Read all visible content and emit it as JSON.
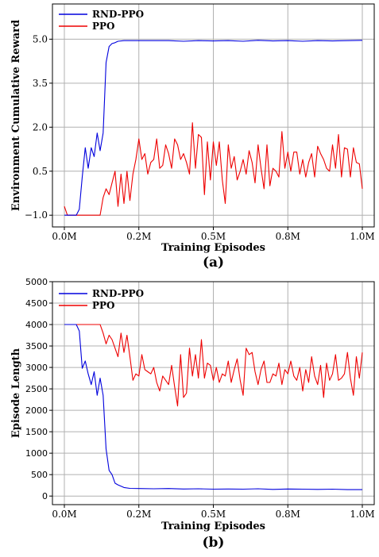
{
  "chart_data": [
    {
      "type": "line",
      "caption": "(a)",
      "xlabel": "Training Episodes",
      "ylabel": "Environment Cumulative Reward",
      "xticks": [
        "0.0M",
        "0.2M",
        "0.5M",
        "0.8M",
        "1.0M"
      ],
      "yticks": [
        "−1.0",
        "0.5",
        "2.0",
        "3.5",
        "5.0"
      ],
      "xlim": [
        -0.04,
        1.04
      ],
      "ylim": [
        -1.4,
        6.2
      ],
      "grid": true,
      "legend_position": "top-left",
      "series": [
        {
          "name": "RND-PPO",
          "color": "#0000dd",
          "x": [
            0.0,
            0.02,
            0.04,
            0.05,
            0.06,
            0.07,
            0.08,
            0.09,
            0.1,
            0.11,
            0.12,
            0.13,
            0.14,
            0.15,
            0.16,
            0.17,
            0.18,
            0.2,
            0.25,
            0.3,
            0.35,
            0.4,
            0.45,
            0.5,
            0.55,
            0.6,
            0.65,
            0.7,
            0.75,
            0.8,
            0.85,
            0.9,
            0.95,
            1.0
          ],
          "y": [
            -1.0,
            -1.0,
            -1.0,
            -0.8,
            0.3,
            1.3,
            0.6,
            1.3,
            1.0,
            1.8,
            1.2,
            1.8,
            4.2,
            4.75,
            4.85,
            4.88,
            4.93,
            4.95,
            4.95,
            4.95,
            4.95,
            4.93,
            4.95,
            4.94,
            4.95,
            4.93,
            4.96,
            4.94,
            4.95,
            4.93,
            4.95,
            4.94,
            4.95,
            4.96
          ]
        },
        {
          "name": "PPO",
          "color": "#ee0000",
          "x": [
            0.0,
            0.01,
            0.02,
            0.05,
            0.08,
            0.11,
            0.12,
            0.13,
            0.14,
            0.15,
            0.16,
            0.17,
            0.18,
            0.19,
            0.2,
            0.21,
            0.22,
            0.23,
            0.24,
            0.25,
            0.26,
            0.27,
            0.28,
            0.29,
            0.3,
            0.31,
            0.32,
            0.33,
            0.34,
            0.35,
            0.36,
            0.37,
            0.38,
            0.39,
            0.4,
            0.41,
            0.42,
            0.43,
            0.44,
            0.45,
            0.46,
            0.47,
            0.48,
            0.49,
            0.5,
            0.51,
            0.52,
            0.53,
            0.54,
            0.55,
            0.56,
            0.57,
            0.58,
            0.59,
            0.6,
            0.61,
            0.62,
            0.63,
            0.64,
            0.65,
            0.66,
            0.67,
            0.68,
            0.69,
            0.7,
            0.71,
            0.72,
            0.73,
            0.74,
            0.75,
            0.76,
            0.77,
            0.78,
            0.79,
            0.8,
            0.81,
            0.82,
            0.83,
            0.84,
            0.85,
            0.86,
            0.87,
            0.88,
            0.89,
            0.9,
            0.91,
            0.92,
            0.93,
            0.94,
            0.95,
            0.96,
            0.97,
            0.98,
            0.99,
            1.0
          ],
          "y": [
            -0.7,
            -1.0,
            -1.0,
            -1.0,
            -1.0,
            -1.0,
            -1.0,
            -0.4,
            -0.1,
            -0.3,
            0.1,
            0.5,
            -0.7,
            0.4,
            -0.6,
            0.5,
            -0.5,
            0.4,
            0.9,
            1.6,
            0.9,
            1.1,
            0.4,
            0.8,
            0.9,
            1.6,
            0.6,
            0.7,
            1.4,
            1.1,
            0.6,
            1.6,
            1.4,
            0.9,
            1.1,
            0.8,
            0.4,
            2.15,
            0.6,
            1.75,
            1.65,
            -0.3,
            1.5,
            0.2,
            1.5,
            0.7,
            1.5,
            0.2,
            -0.6,
            1.4,
            0.6,
            1.0,
            0.2,
            0.5,
            0.9,
            0.4,
            1.2,
            0.8,
            0.1,
            1.4,
            0.6,
            -0.1,
            1.4,
            0.0,
            0.6,
            0.5,
            0.3,
            1.85,
            0.6,
            1.15,
            0.5,
            1.15,
            1.15,
            0.4,
            0.9,
            0.3,
            0.8,
            1.1,
            0.3,
            1.35,
            1.1,
            0.9,
            0.6,
            0.5,
            1.4,
            0.6,
            1.75,
            0.3,
            1.3,
            1.25,
            0.3,
            1.3,
            0.8,
            0.75,
            -0.1
          ]
        }
      ]
    },
    {
      "type": "line",
      "caption": "(b)",
      "xlabel": "Training Episodes",
      "ylabel": "Episode Length",
      "xticks": [
        "0.0M",
        "0.2M",
        "0.5M",
        "0.8M",
        "1.0M"
      ],
      "yticks": [
        "0",
        "500",
        "1000",
        "1500",
        "2000",
        "2500",
        "3000",
        "3500",
        "4000",
        "4500",
        "5000"
      ],
      "xlim": [
        -0.04,
        1.04
      ],
      "ylim": [
        -200,
        5000
      ],
      "grid": true,
      "legend_position": "top-left",
      "series": [
        {
          "name": "RND-PPO",
          "color": "#0000dd",
          "x": [
            0.0,
            0.02,
            0.04,
            0.05,
            0.06,
            0.07,
            0.08,
            0.09,
            0.1,
            0.11,
            0.12,
            0.13,
            0.14,
            0.15,
            0.16,
            0.17,
            0.18,
            0.19,
            0.2,
            0.22,
            0.25,
            0.3,
            0.35,
            0.4,
            0.45,
            0.5,
            0.55,
            0.6,
            0.65,
            0.7,
            0.75,
            0.8,
            0.85,
            0.9,
            0.95,
            1.0
          ],
          "y": [
            4000,
            4000,
            4000,
            3850,
            2980,
            3150,
            2850,
            2600,
            2900,
            2350,
            2750,
            2350,
            1100,
            600,
            500,
            300,
            260,
            230,
            200,
            180,
            175,
            170,
            175,
            165,
            170,
            160,
            165,
            160,
            170,
            155,
            165,
            160,
            155,
            160,
            150,
            150
          ]
        },
        {
          "name": "PPO",
          "color": "#ee0000",
          "x": [
            0.0,
            0.02,
            0.05,
            0.08,
            0.11,
            0.12,
            0.13,
            0.14,
            0.15,
            0.16,
            0.17,
            0.18,
            0.19,
            0.2,
            0.21,
            0.22,
            0.23,
            0.24,
            0.25,
            0.26,
            0.27,
            0.28,
            0.29,
            0.3,
            0.31,
            0.32,
            0.33,
            0.34,
            0.35,
            0.36,
            0.37,
            0.38,
            0.39,
            0.4,
            0.41,
            0.42,
            0.43,
            0.44,
            0.45,
            0.46,
            0.47,
            0.48,
            0.49,
            0.5,
            0.51,
            0.52,
            0.53,
            0.54,
            0.55,
            0.56,
            0.57,
            0.58,
            0.59,
            0.6,
            0.61,
            0.62,
            0.63,
            0.64,
            0.65,
            0.66,
            0.67,
            0.68,
            0.69,
            0.7,
            0.71,
            0.72,
            0.73,
            0.74,
            0.75,
            0.76,
            0.77,
            0.78,
            0.79,
            0.8,
            0.81,
            0.82,
            0.83,
            0.84,
            0.85,
            0.86,
            0.87,
            0.88,
            0.89,
            0.9,
            0.91,
            0.92,
            0.93,
            0.94,
            0.95,
            0.96,
            0.97,
            0.98,
            0.99,
            1.0
          ],
          "y": [
            4000,
            4000,
            4000,
            4000,
            4000,
            4000,
            3800,
            3550,
            3750,
            3650,
            3450,
            3250,
            3800,
            3350,
            3750,
            3250,
            2700,
            2850,
            2800,
            3300,
            2950,
            2900,
            2850,
            3000,
            2650,
            2450,
            2800,
            2700,
            2600,
            3050,
            2550,
            2100,
            3300,
            2300,
            2400,
            3450,
            2800,
            3300,
            2750,
            3650,
            2750,
            3100,
            3050,
            2700,
            3000,
            2650,
            2850,
            2800,
            3150,
            2650,
            2950,
            3200,
            2700,
            2350,
            3450,
            3300,
            3350,
            2900,
            2600,
            2950,
            3150,
            2650,
            2650,
            2850,
            2800,
            3100,
            2600,
            2950,
            2850,
            3150,
            2800,
            2700,
            3000,
            2450,
            2950,
            2650,
            3250,
            2800,
            2600,
            3050,
            2300,
            3100,
            2700,
            2850,
            3300,
            2700,
            2750,
            2850,
            3350,
            2750,
            2350,
            3250,
            2750,
            3350
          ]
        }
      ]
    }
  ]
}
